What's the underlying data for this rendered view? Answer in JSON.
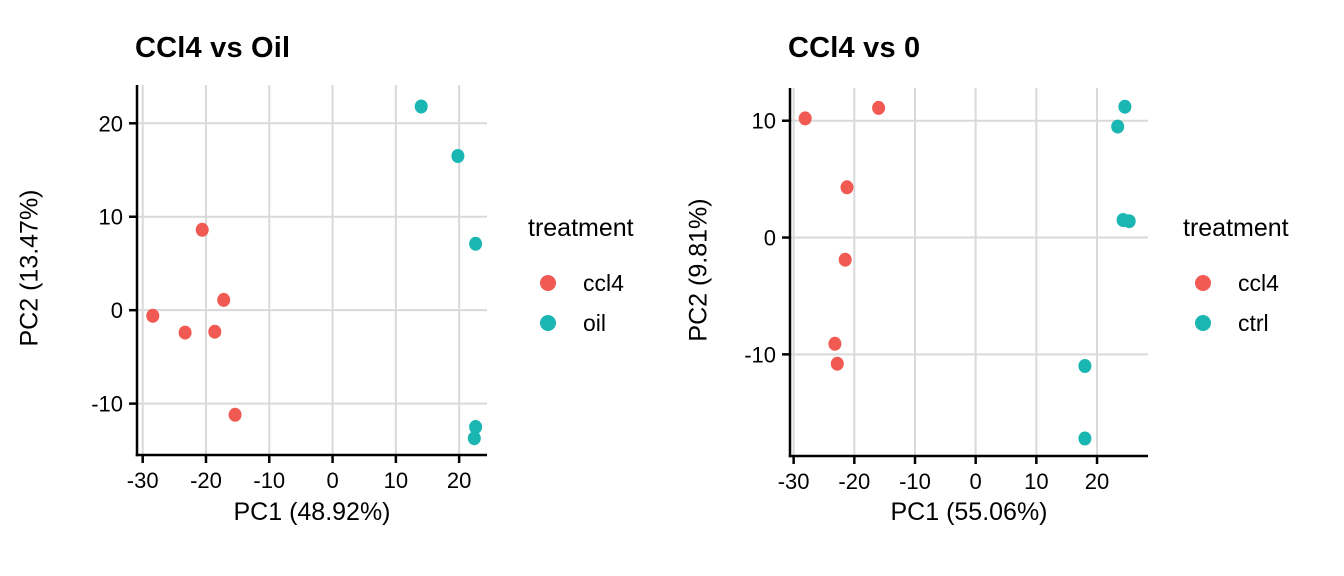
{
  "page": {
    "background": "#ffffff"
  },
  "style": {
    "axis_color": "#000000",
    "grid_color": "#d9d9d9",
    "text_color": "#000000",
    "ccl4_color": "#f05a52",
    "teal_color": "#1ab6b1"
  },
  "chart_data": [
    {
      "type": "scatter",
      "title": "CCl4 vs Oil",
      "xlabel": "PC1 (48.92%)",
      "ylabel": "PC2 (13.47%)",
      "xlim": [
        -30.9,
        24.4
      ],
      "ylim": [
        -15.5,
        24.1
      ],
      "xticks": [
        -30,
        -20,
        -10,
        0,
        10,
        20
      ],
      "yticks": [
        20,
        10,
        0,
        -10
      ],
      "grid": true,
      "legend_position": "right",
      "legend_title": "treatment",
      "series": [
        {
          "name": "ccl4",
          "color": "#f05a52",
          "points": [
            [
              -20.6,
              8.6
            ],
            [
              -17.2,
              1.1
            ],
            [
              -28.4,
              -0.6
            ],
            [
              -23.3,
              -2.4
            ],
            [
              -18.6,
              -2.3
            ],
            [
              -15.4,
              -11.2
            ]
          ]
        },
        {
          "name": "oil",
          "color": "#1ab6b1",
          "points": [
            [
              14.0,
              21.8
            ],
            [
              19.8,
              16.5
            ],
            [
              22.6,
              7.1
            ],
            [
              22.6,
              -12.5
            ],
            [
              22.4,
              -13.7
            ]
          ]
        }
      ]
    },
    {
      "type": "scatter",
      "title": "CCl4 vs 0",
      "xlabel": "PC1 (55.06%)",
      "ylabel": "PC2 (9.81%)",
      "xlim": [
        -30.6,
        28.4
      ],
      "ylim": [
        -18.7,
        12.8
      ],
      "xticks": [
        -30,
        -20,
        -10,
        0,
        10,
        20
      ],
      "yticks": [
        10,
        0,
        -10
      ],
      "grid": true,
      "legend_position": "right",
      "legend_title": "treatment",
      "series": [
        {
          "name": "ccl4",
          "color": "#f05a52",
          "points": [
            [
              -28.1,
              10.2
            ],
            [
              -16.0,
              11.1
            ],
            [
              -21.2,
              4.3
            ],
            [
              -21.5,
              -1.9
            ],
            [
              -23.2,
              -9.1
            ],
            [
              -22.8,
              -10.8
            ]
          ]
        },
        {
          "name": "ctrl",
          "color": "#1ab6b1",
          "points": [
            [
              24.6,
              11.2
            ],
            [
              23.4,
              9.5
            ],
            [
              24.3,
              1.5
            ],
            [
              25.3,
              1.4
            ],
            [
              18.0,
              -11.0
            ],
            [
              18.0,
              -17.2
            ]
          ]
        }
      ]
    }
  ]
}
